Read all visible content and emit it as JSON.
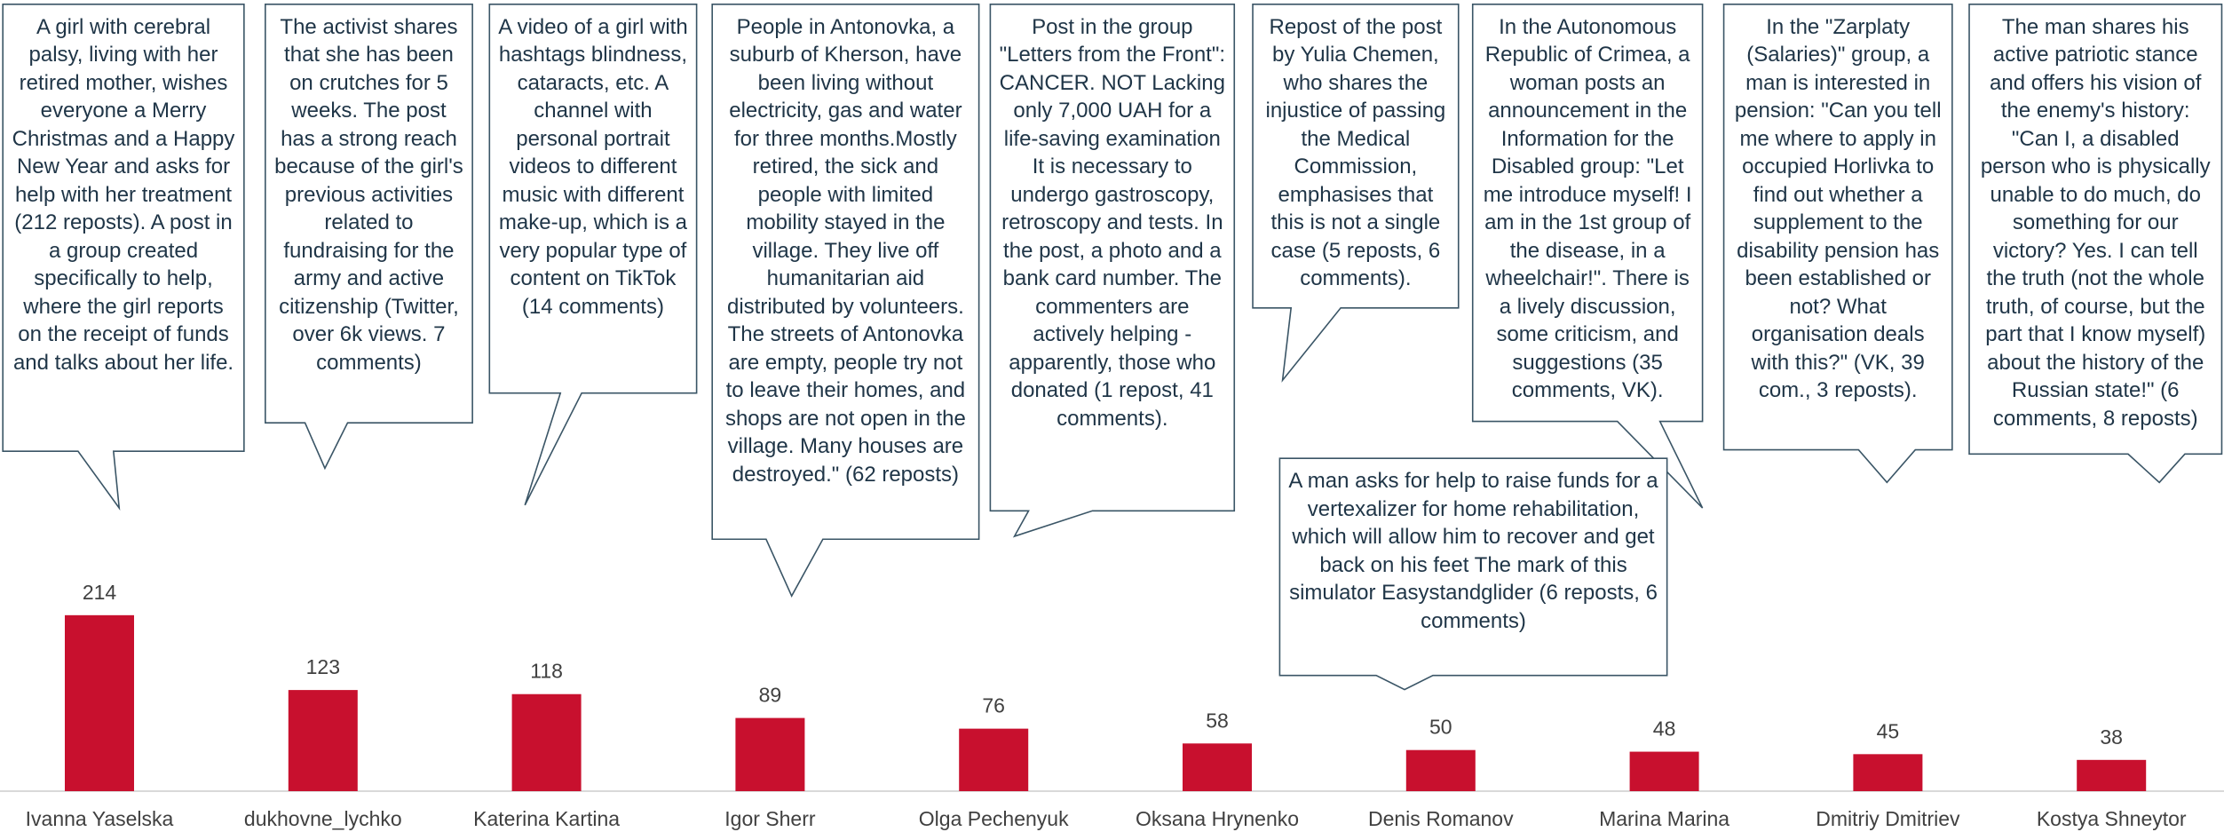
{
  "chart_data": {
    "type": "bar",
    "categories": [
      "Ivanna Yaselska",
      "dukhovne_lychko",
      "Katerina Kartina",
      "Igor Sherr",
      "Olga Pechenyuk",
      "Oksana Hrynenko",
      "Denis Romanov",
      "Marina Marina",
      "Dmitriy Dmitriev",
      "Kostya Shneytor"
    ],
    "values": [
      214,
      123,
      118,
      89,
      76,
      58,
      50,
      48,
      45,
      38
    ],
    "color": "#c8102e",
    "annotations": [
      "A girl with cerebral palsy, living with her retired mother, wishes everyone a Merry Christmas and a Happy New Year and asks for help with her treatment (212 reposts). A post in a group created specifically to help, where the girl reports on the receipt of funds and talks about her life.",
      "The activist shares that she has been on crutches for 5 weeks. The post has a strong reach because of the girl's previous activities related to fundraising for the army and active citizenship (Twitter, over 6k views. 7 comments)",
      "A video of a girl with hashtags blindness, cataracts, etc. A channel with personal portrait videos to different music with different make-up, which is a very popular type of content on TikTok (14 comments)",
      "People in Antonovka, a suburb of Kherson, have been living without electricity, gas and water for three months.Mostly retired, the sick and people with limited mobility stayed in the village. They live off humanitarian aid distributed by volunteers. The streets of Antonovka are empty, people try not to leave their homes, and shops are not open in the village. Many houses are destroyed.\" (62 reposts)",
      "Post in the group \"Letters from the Front\": CANCER. NOT Lacking only 7,000 UAH for a life-saving examination It is necessary to undergo gastroscopy, retroscopy and tests. In the post, a photo and a bank card number. The commenters are actively helping - apparently, those who donated (1 repost, 41 comments).",
      "Repost of the post by Yulia Chemen, who shares the injustice of passing the Medical Commission, emphasises that this is not a single case (5 reposts, 6 comments).",
      "In the Autonomous Republic of Crimea, a woman posts an announcement in the Information for the Disabled group: \"Let me introduce myself! I am in the 1st group of the disease, in a wheelchair!\". There is a lively discussion, some criticism, and suggestions (35 comments, VK).",
      "In the \"Zarplaty (Salaries)\" group, a man is interested in pension: \"Can you tell me where to apply in occupied Horlivka to find out whether a supplement to the disability pension has been established or not? What organisation deals with this?\" (VK, 39 com., 3 reposts).",
      "The man shares his active patriotic stance and offers his vision of the enemy's history: \"Can I, a disabled person who is physically unable to do much, do something for our victory? Yes. I can tell the truth (not the whole truth, of course, but the part that I know myself) about the history of the Russian state!\" (6 comments, 8 reposts)",
      "A man asks for help to raise funds for a vertexalizer for home rehabilitation, which will allow him to recover and get back on his feet The mark of this simulator Easystandglider (6 reposts, 6 comments)"
    ]
  }
}
